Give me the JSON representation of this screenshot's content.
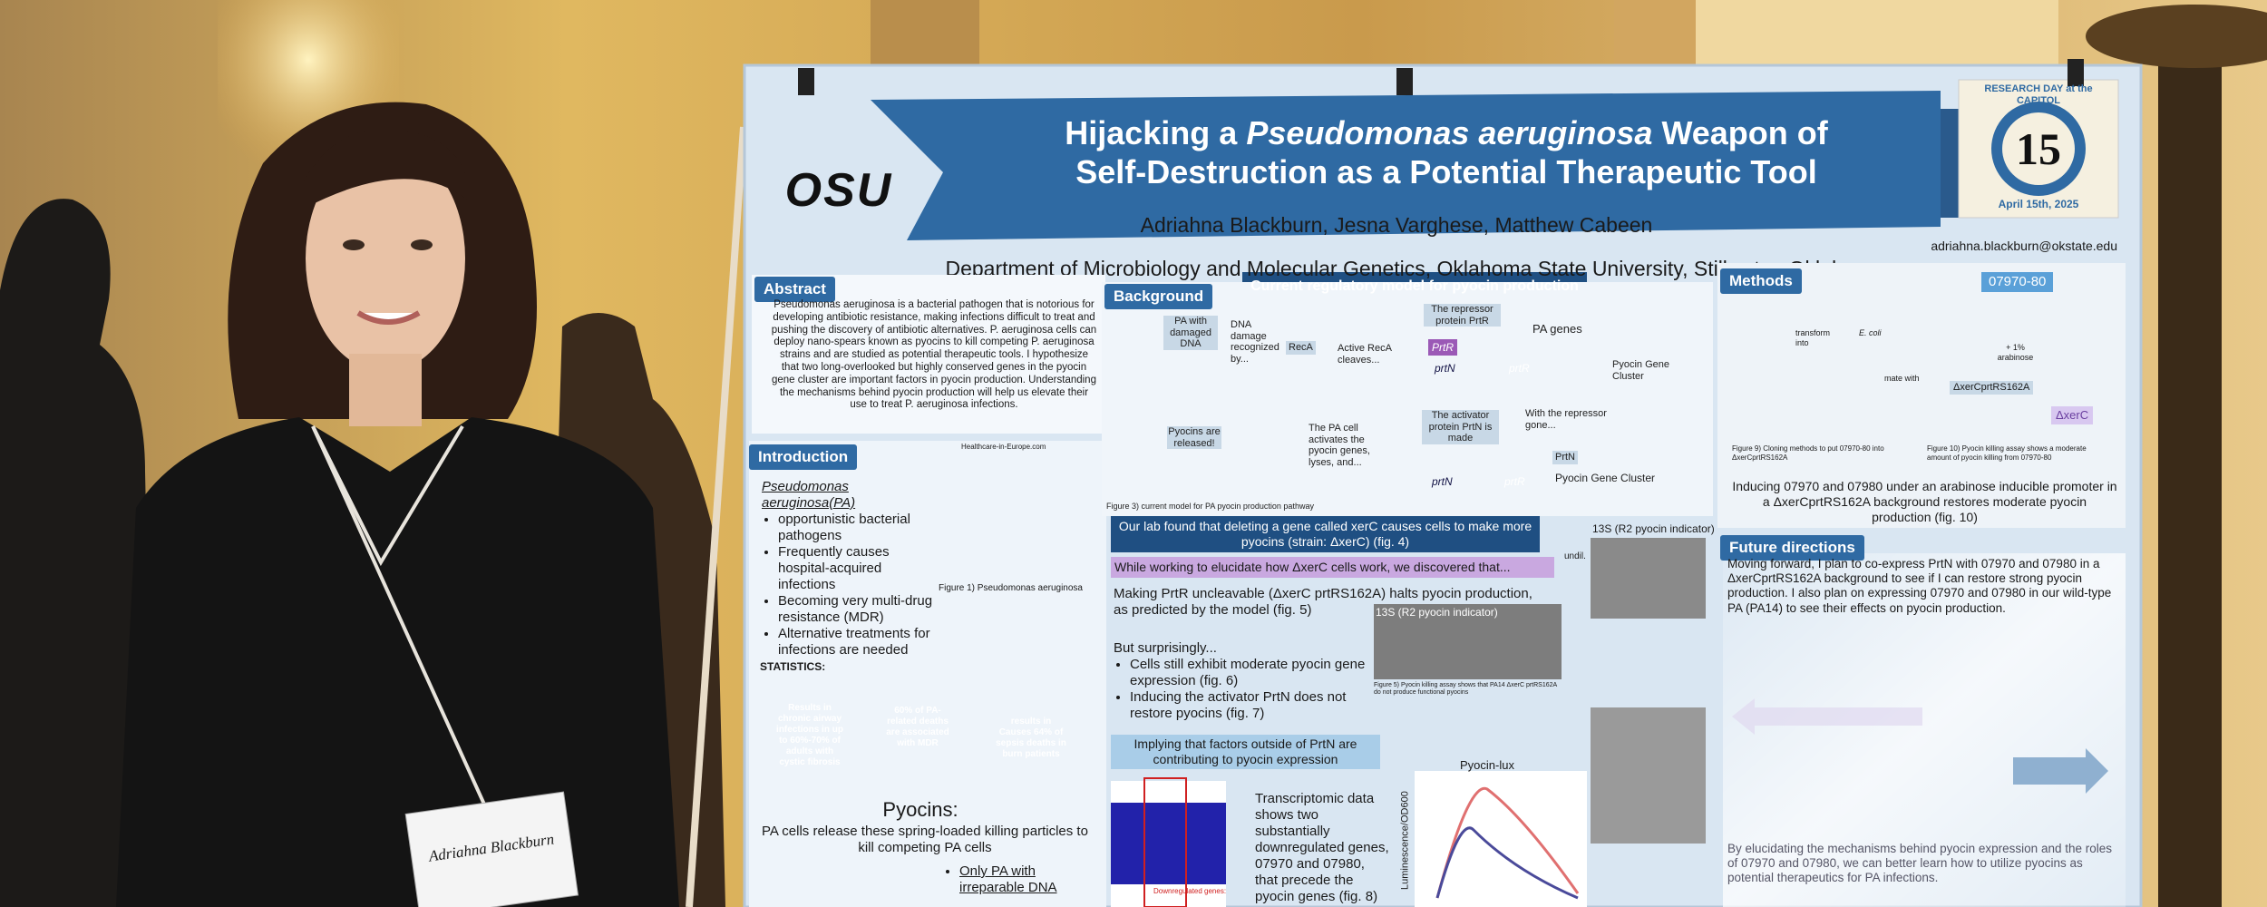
{
  "poster": {
    "title": {
      "line1": [
        "Hijacking a ",
        "Pseudomonas aeruginosa",
        " Weapon of"
      ],
      "line2": "Self-Destruction as a Potential Therapeutic Tool"
    },
    "logo": "OSU",
    "badge": {
      "arc_top": "RESEARCH DAY at the CAPITOL",
      "number": "15",
      "date": "April 15th, 2025"
    },
    "authors": "Adriahna Blackburn, Jesna Varghese, Matthew Cabeen",
    "affiliation": "Department of Microbiology and Molecular Genetics, Oklahoma State University, Stillwater, Oklahoma",
    "email": "adriahna.blackburn@okstate.edu",
    "abstract": {
      "heading": "Abstract",
      "text": "Pseudomonas aeruginosa is a bacterial pathogen that is notorious for developing antibiotic resistance, making infections difficult to treat and pushing the discovery of antibiotic alternatives. P. aeruginosa cells can deploy nano-spears known as pyocins to kill competing P. aeruginosa strains and are studied as potential therapeutic tools. I hypothesize that two long-overlooked but highly conserved genes in the pyocin gene cluster are important factors in pyocin production. Understanding the mechanisms behind pyocin production will help us elevate their use to treat P. aeruginosa infections."
    },
    "introduction": {
      "heading": "Introduction",
      "lead": "Pseudomonas aeruginosa(PA)",
      "items": [
        "opportunistic bacterial pathogens",
        "Frequently causes hospital-acquired infections",
        "Becoming very multi-drug resistance (MDR)",
        "Alternative treatments for infections are needed"
      ],
      "image_source": "Healthcare-in-Europe.com",
      "caption": "Figure 1) Pseudomonas aeruginosa",
      "statistics_heading": "STATISTICS:",
      "stats": [
        "Results in chronic airway infections in up to 60%-70% of adults with cystic fibrosis",
        "60% of PA-related deaths are associated with MDR",
        "results in Causes 64% of sepsis deaths in burn patients"
      ],
      "pyocins_heading": "Pyocins:",
      "pyocins_text": "PA cells release these spring-loaded killing particles to kill competing PA cells",
      "pyocins_item": "Only PA with irreparable DNA"
    },
    "background": {
      "heading": "Background",
      "model_title": "Current regulatory model for pyocin production",
      "diagram": [
        "PA with damaged DNA",
        "DNA damage recognized by...",
        "RecA",
        "Active RecA cleaves...",
        "The repressor protein PrtR",
        "PrtR",
        "prtN",
        "prtR",
        "PA genes",
        "Pyocin Gene Cluster",
        "Pyocins are released!",
        "The PA cell activates the pyocin genes, lyses, and...",
        "The activator protein PrtN is made",
        "With the repressor gone...",
        "PrtN",
        "prtN",
        "prtR",
        "Pyocin Gene Cluster"
      ],
      "caption": "Figure 3) current model for PA pyocin production pathway"
    },
    "findings": {
      "lab_found": "Our lab found that deleting a gene called xerC causes cells to make more pyocins (strain: ΔxerC) (fig. 4)",
      "discovered": "While working to elucidate how ΔxerC cells work, we discovered that...",
      "uncleavable": "Making PrtR uncleavable (ΔxerC prtRS162A) halts pyocin production, as predicted by the model (fig. 5)",
      "surprisingly": "But surprisingly...",
      "surprise_items": [
        "Cells still exhibit moderate pyocin gene expression (fig. 6)",
        "Inducing the activator PrtN does not restore pyocins (fig. 7)"
      ],
      "implying": "Implying that factors outside of PrtN are contributing to pyocin expression",
      "transcriptomic": "Transcriptomic data shows two substantially downregulated genes, 07970 and 07980, that precede the pyocin genes (fig. 8)",
      "fig4_title": "13S (R2 pyocin indicator)",
      "fig4_dilution": "undil.",
      "fig5_title": "13S (R2 pyocin indicator)",
      "fig5_caption": "Figure 5) Pyocin killing assay shows that PA14 ΔxerC prtRS162A do not produce functional pyocins",
      "fig8_label": "Downregulated genes:",
      "fig7_title": "Pyocin-lux",
      "fig7_ylabel": "Luminescence/OD600"
    },
    "methods": {
      "heading": "Methods",
      "plate_label": "07970-80",
      "plate_corner": "ΔxerC",
      "plate_strain": "ΔxerCprtRS162A",
      "plate_center": "+ 1% arabinose",
      "cloning": [
        "transform into",
        "E. coli",
        "mate with"
      ],
      "fig9": "Figure 9) Cloning methods to put 07970-80 into ΔxerCprtRS162A",
      "fig10": "Figure 10) Pyocin killing assay shows a moderate amount of pyocin killing from 07970-80",
      "text": "Inducing 07970 and 07980 under an arabinose inducible promoter in a ΔxerCprtRS162A background restores moderate pyocin production (fig. 10)"
    },
    "future": {
      "heading": "Future directions",
      "text1": "Moving forward, I plan to co-express PrtN with 07970 and 07980 in a ΔxerCprtRS162A background to see if I can restore strong pyocin production. I also plan on expressing 07970 and 07980 in our wild-type PA (PA14) to see their effects on pyocin production.",
      "text2": "By elucidating the mechanisms behind pyocin expression and the roles of 07970 and 07980, we can better learn how to utilize pyocins as potential therapeutics for PA infections."
    },
    "nametag": "Adriahna Blackburn"
  }
}
